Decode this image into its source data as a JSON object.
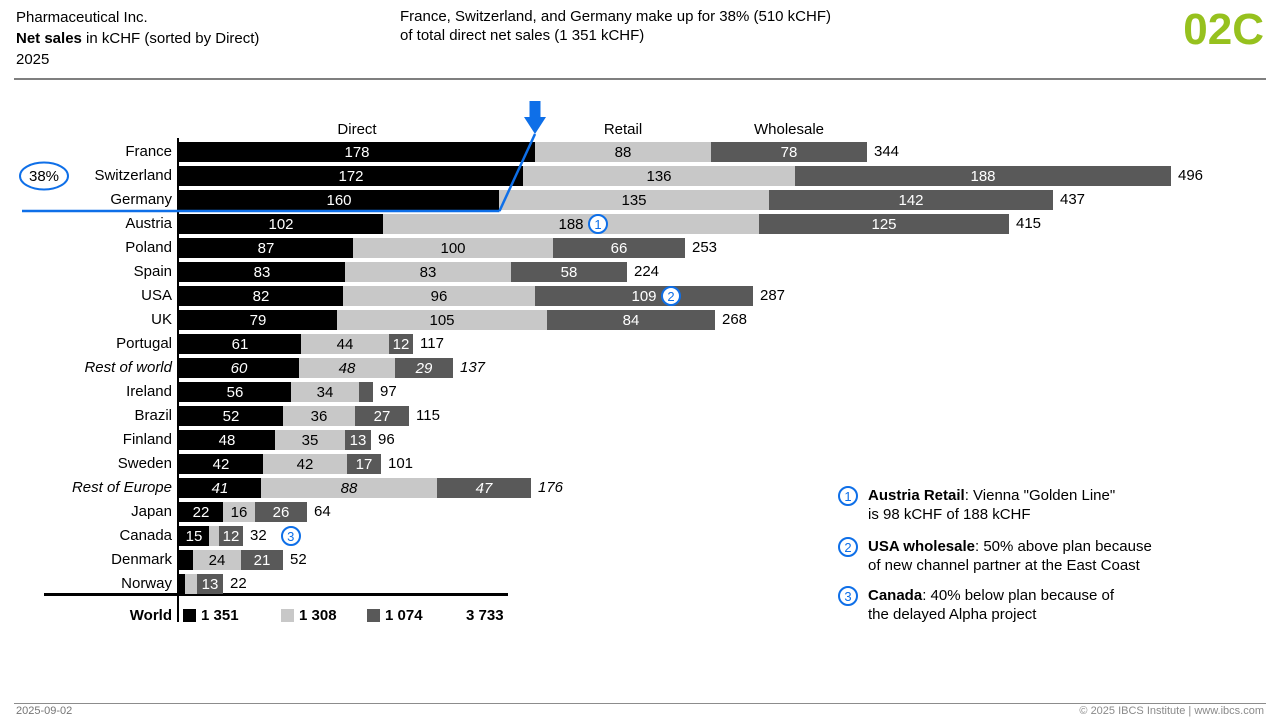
{
  "header": {
    "company": "Pharmaceutical Inc.",
    "title_bold": "Net sales",
    "title_rest": " in kCHF (sorted by Direct)",
    "period": "2025",
    "message_line1": "France, Switzerland, and Germany make up for 38% (510 kCHF)",
    "message_line2": "of total direct net sales (1 351 kCHF)",
    "page_code": "02C"
  },
  "colors": {
    "direct": "#000000",
    "retail": "#C8C8C8",
    "wholesale": "#595959",
    "highlight_blue": "#0E6FE8",
    "accent_green": "#96C11E"
  },
  "chart_data": {
    "type": "bar",
    "stacked": true,
    "orientation": "horizontal",
    "unit": "kCHF",
    "sorted_by": "Direct",
    "categories": [
      "France",
      "Switzerland",
      "Germany",
      "Austria",
      "Poland",
      "Spain",
      "USA",
      "UK",
      "Portugal",
      "Rest of world",
      "Ireland",
      "Brazil",
      "Finland",
      "Sweden",
      "Rest of Europe",
      "Japan",
      "Canada",
      "Denmark",
      "Norway"
    ],
    "italic_categories": [
      "Rest of world",
      "Rest of Europe"
    ],
    "series": [
      {
        "name": "Direct",
        "values": [
          178,
          172,
          160,
          102,
          87,
          83,
          82,
          79,
          61,
          60,
          56,
          52,
          48,
          42,
          41,
          22,
          15,
          7,
          3
        ]
      },
      {
        "name": "Retail",
        "values": [
          88,
          136,
          135,
          188,
          100,
          83,
          96,
          105,
          44,
          48,
          34,
          36,
          35,
          42,
          88,
          16,
          5,
          24,
          6
        ]
      },
      {
        "name": "Wholesale",
        "values": [
          78,
          188,
          142,
          125,
          66,
          58,
          109,
          84,
          12,
          29,
          7,
          27,
          13,
          17,
          47,
          26,
          12,
          21,
          13
        ]
      }
    ],
    "totals": [
      344,
      496,
      437,
      415,
      253,
      224,
      287,
      268,
      117,
      137,
      97,
      115,
      96,
      101,
      176,
      64,
      32,
      52,
      22
    ],
    "summary_row": {
      "label": "World",
      "values": [
        "1 351",
        "1 308",
        "1 074"
      ],
      "total": "3 733"
    },
    "markers": [
      {
        "num": "1",
        "category": "Austria",
        "segment": "Retail"
      },
      {
        "num": "2",
        "category": "USA",
        "segment": "Wholesale"
      },
      {
        "num": "3",
        "category": "Canada",
        "segment": "total"
      }
    ],
    "highlight": {
      "label": "38%",
      "highlighted_categories": [
        "France",
        "Switzerland",
        "Germany"
      ]
    },
    "min_value_for_label": 12
  },
  "notes": [
    {
      "num": "1",
      "bold": "Austria Retail",
      "line1_rest": ": Vienna \"Golden Line\"",
      "line2": "is 98 kCHF of 188 kCHF"
    },
    {
      "num": "2",
      "bold": "USA wholesale",
      "line1_rest": ": 50% above plan because",
      "line2": "of new channel partner at the East Coast"
    },
    {
      "num": "3",
      "bold": "Canada",
      "line1_rest": ": 40% below plan because of",
      "line2": "the delayed Alpha project"
    }
  ],
  "footer": {
    "date": "2025-09-02",
    "copyright": "© 2025 IBCS Institute | www.ibcs.com"
  }
}
